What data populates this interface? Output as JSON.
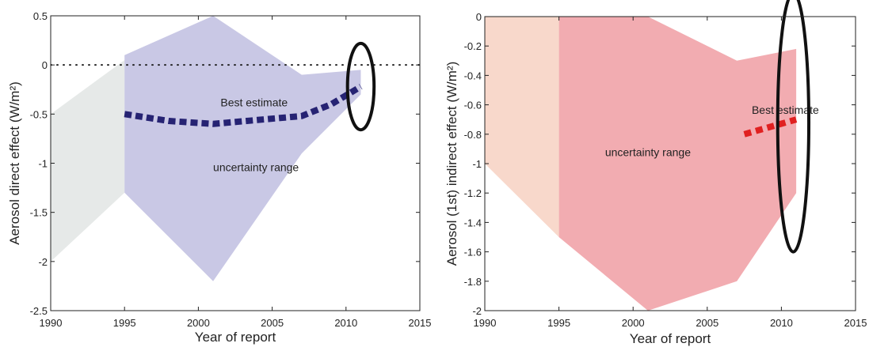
{
  "colors": {
    "left_early_band": "#e6e9e8",
    "left_band": "#c9c8e5",
    "left_line": "#262373",
    "right_early_band": "#f8d8cb",
    "right_band": "#f2acb1",
    "right_line": "#e02020",
    "ellipse": "#111111",
    "axis": "#222222"
  },
  "chart_data": [
    {
      "type": "area",
      "title": "",
      "xlabel": "Year of report",
      "ylabel": "Aerosol direct effect (W/m²)",
      "xlim": [
        1990,
        2015
      ],
      "ylim": [
        -2.5,
        0.5
      ],
      "xticks": [
        "1990",
        "1995",
        "2000",
        "2005",
        "2010",
        "2015"
      ],
      "yticks": [
        "0.5",
        "0",
        "-0.5",
        "-1",
        "-1.5",
        "-2",
        "-2.5"
      ],
      "grid": false,
      "zero_reference_line": true,
      "early_band": {
        "x": [
          1990,
          1995,
          1995,
          1990
        ],
        "y": [
          -0.5,
          0.05,
          -1.3,
          -2.0
        ]
      },
      "uncertainty_band": {
        "upper_x": [
          1995,
          2001,
          2007,
          2011
        ],
        "upper_y": [
          0.1,
          0.5,
          -0.1,
          -0.05
        ],
        "lower_x": [
          1995,
          2001,
          2007,
          2011
        ],
        "lower_y": [
          -1.3,
          -2.2,
          -0.9,
          -0.3
        ]
      },
      "best_estimate": {
        "x": [
          1995,
          1998,
          2001,
          2004,
          2007,
          2009,
          2011
        ],
        "y": [
          -0.5,
          -0.57,
          -0.6,
          -0.56,
          -0.52,
          -0.4,
          -0.22
        ]
      },
      "annotations": {
        "best_estimate_label": "Best estimate",
        "uncertainty_label": "uncertainty range"
      },
      "label_pos": {
        "best_estimate": [
          2001.5,
          -0.42
        ],
        "uncertainty": [
          2001,
          -1.08
        ]
      },
      "ellipse_center": [
        2011,
        -0.22
      ],
      "ellipse_radius": [
        0.9,
        0.44
      ]
    },
    {
      "type": "area",
      "title": "",
      "xlabel": "Year of report",
      "ylabel": "Aerosol (1st) indirect effect (W/m²)",
      "xlim": [
        1990,
        2015
      ],
      "ylim": [
        -2,
        0
      ],
      "xticks": [
        "1990",
        "1995",
        "2000",
        "2005",
        "2010",
        "2015"
      ],
      "yticks": [
        "0",
        "-0.2",
        "-0.4",
        "-0.6",
        "-0.8",
        "-1",
        "-1.2",
        "-1.4",
        "-1.6",
        "-1.8",
        "-2"
      ],
      "grid": false,
      "zero_reference_line": false,
      "early_band": {
        "x": [
          1990,
          1990,
          1995,
          1995
        ],
        "y": [
          0,
          -1.0,
          -1.5,
          0
        ]
      },
      "uncertainty_band": {
        "upper_x": [
          1995,
          2001,
          2007,
          2011
        ],
        "upper_y": [
          0,
          0,
          -0.3,
          -0.22
        ],
        "lower_x": [
          1995,
          2001,
          2007,
          2011
        ],
        "lower_y": [
          -1.5,
          -2.0,
          -1.8,
          -1.2
        ]
      },
      "best_estimate": {
        "x": [
          2007.5,
          2011
        ],
        "y": [
          -0.8,
          -0.7
        ]
      },
      "annotations": {
        "best_estimate_label": "Best estimate",
        "uncertainty_label": "uncertainty range"
      },
      "label_pos": {
        "best_estimate": [
          2008,
          -0.66
        ],
        "uncertainty": [
          2001,
          -0.95
        ]
      },
      "ellipse_center": [
        2010.8,
        -0.72
      ],
      "ellipse_radius": [
        1.05,
        0.88
      ]
    }
  ]
}
